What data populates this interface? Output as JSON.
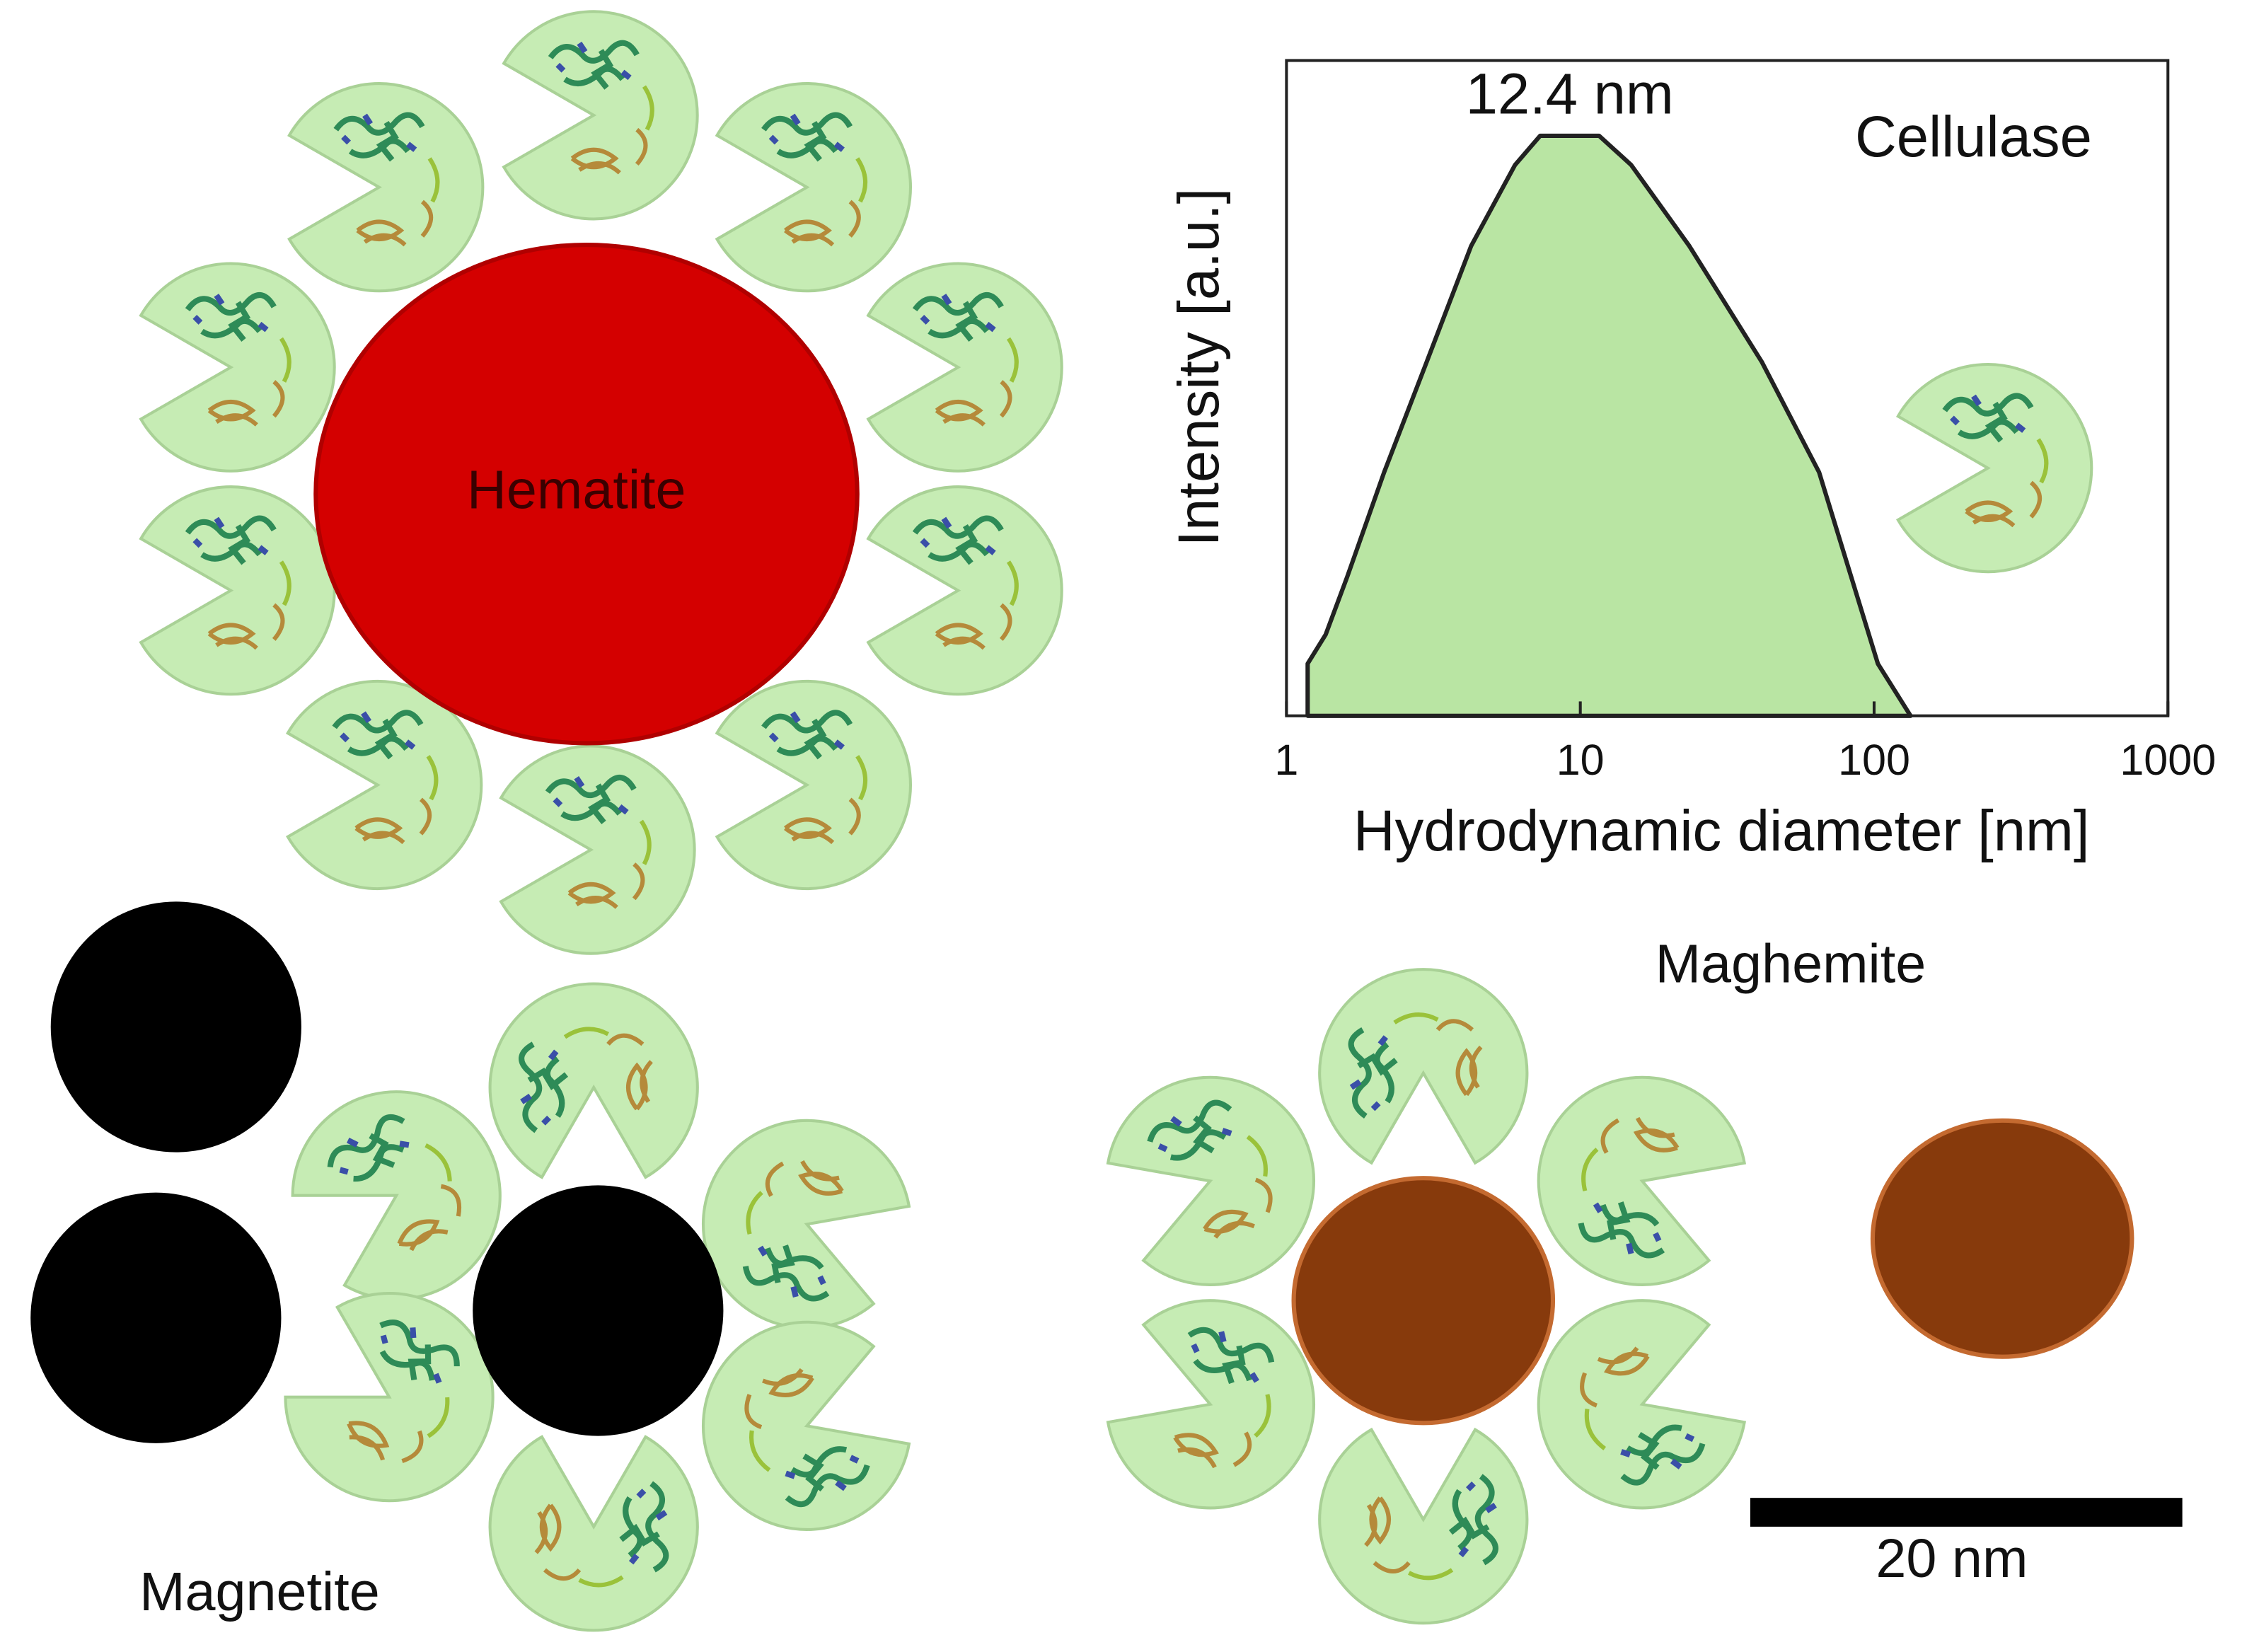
{
  "chart_data": {
    "type": "area",
    "y_label": "Intensity [a.u.]",
    "x_label": "Hydrodynamic diameter [nm]",
    "series_label": "Cellulase",
    "peak_annotation": "12.4 nm",
    "x": [
      1.18,
      1.18,
      1.36,
      1.61,
      2.15,
      3.0,
      4.25,
      6.0,
      7.3,
      11.6,
      14.9,
      23.5,
      41.5,
      65,
      103,
      133
    ],
    "values": [
      0,
      9,
      14,
      24,
      42,
      61,
      81,
      95,
      100,
      100,
      95,
      81,
      61,
      42,
      9,
      0
    ],
    "color": "#b9e5a3",
    "xlim": [
      1,
      1000
    ],
    "xticks": [
      1,
      10,
      100,
      1000
    ],
    "xscale": "log",
    "ylim": [
      0,
      113
    ]
  },
  "labels": {
    "hematite": "Hematite",
    "magnetite": "Magnetite",
    "maghemite": "Maghemite",
    "scale_bar": "20 nm"
  }
}
